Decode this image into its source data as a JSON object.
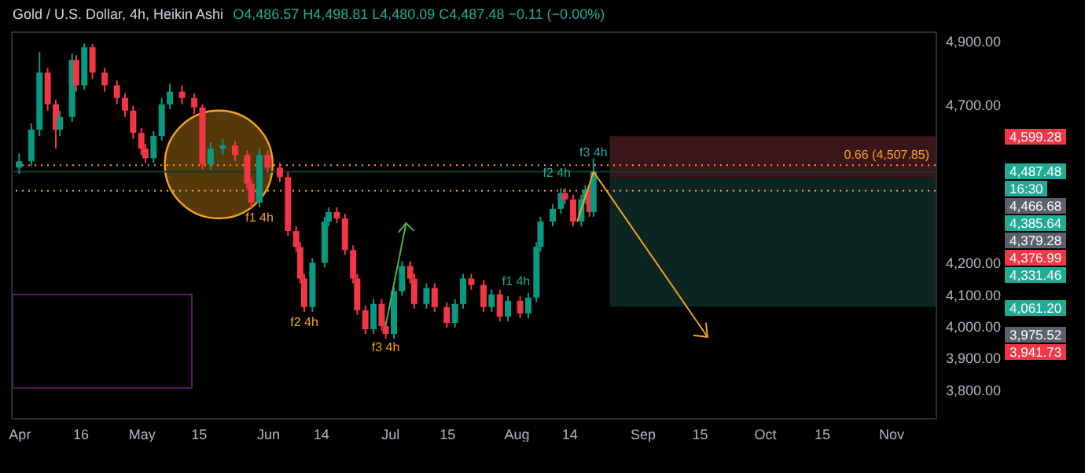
{
  "chart_data": {
    "type": "candlestick",
    "title": "Gold / U.S. Dollar, 4h, Heikin Ashi",
    "subtitle": "O4,486.57 H4,498.81 L4,480.09 C4,487.48 −0.11 (−0.00%)",
    "x": [
      "--04-01",
      "--04-04",
      "--04-06",
      "--04-08",
      "--04-10",
      "--04-11",
      "--04-14",
      "--04-15",
      "--04-17",
      "--04-19",
      "--04-22",
      "--04-25",
      "--04-27",
      "--04-29",
      "--05-01",
      "--05-02",
      "--05-04",
      "--05-06",
      "--05-08",
      "--05-11",
      "--05-14",
      "--05-16",
      "--05-18",
      "--05-21",
      "--05-24",
      "--05-27",
      "--05-28",
      "--05-30",
      "--06-01",
      "--06-04",
      "--06-06",
      "--06-08",
      "--06-09",
      "--06-10",
      "--06-12",
      "--06-15",
      "--06-16",
      "--06-18",
      "--06-20",
      "--06-22",
      "--06-23",
      "--06-25",
      "--06-27",
      "--06-29",
      "--06-30",
      "--07-02",
      "--07-04",
      "--07-06",
      "--07-07",
      "--07-10",
      "--07-12",
      "--07-15",
      "--07-17",
      "--07-19",
      "--07-21",
      "--07-24",
      "--07-26",
      "--07-28",
      "--07-30",
      "--08-02",
      "--08-04",
      "--08-06",
      "--08-07",
      "--08-10",
      "--08-12",
      "--08-13",
      "--08-15",
      "--08-17",
      "--08-18",
      "--08-19",
      "--08-20"
    ],
    "ohlc": [
      [
        4500,
        4545,
        4480,
        4520
      ],
      [
        4520,
        4640,
        4505,
        4620
      ],
      [
        4620,
        4865,
        4600,
        4800
      ],
      [
        4800,
        4815,
        4680,
        4700
      ],
      [
        4700,
        4715,
        4560,
        4620
      ],
      [
        4620,
        4680,
        4600,
        4660
      ],
      [
        4660,
        4860,
        4645,
        4840
      ],
      [
        4840,
        4855,
        4740,
        4760
      ],
      [
        4760,
        4892,
        4745,
        4880
      ],
      [
        4880,
        4890,
        4780,
        4800
      ],
      [
        4800,
        4815,
        4740,
        4760
      ],
      [
        4760,
        4775,
        4700,
        4720
      ],
      [
        4720,
        4735,
        4660,
        4680
      ],
      [
        4680,
        4695,
        4590,
        4610
      ],
      [
        4610,
        4625,
        4540,
        4560
      ],
      [
        4560,
        4575,
        4515,
        4530
      ],
      [
        4530,
        4615,
        4515,
        4600
      ],
      [
        4600,
        4720,
        4585,
        4700
      ],
      [
        4700,
        4765,
        4685,
        4740
      ],
      [
        4740,
        4760,
        4700,
        4720
      ],
      [
        4720,
        4735,
        4670,
        4690
      ],
      [
        4690,
        4700,
        4495,
        4510
      ],
      [
        4510,
        4580,
        4495,
        4560
      ],
      [
        4560,
        4590,
        4540,
        4570
      ],
      [
        4570,
        4585,
        4520,
        4540
      ],
      [
        4540,
        4555,
        4430,
        4450
      ],
      [
        4450,
        4465,
        4370,
        4390
      ],
      [
        4390,
        4560,
        4375,
        4540
      ],
      [
        4540,
        4555,
        4485,
        4500
      ],
      [
        4500,
        4515,
        4455,
        4470
      ],
      [
        4470,
        4485,
        4285,
        4300
      ],
      [
        4300,
        4315,
        4235,
        4250
      ],
      [
        4250,
        4265,
        4135,
        4150
      ],
      [
        4150,
        4165,
        4045,
        4060
      ],
      [
        4060,
        4215,
        4045,
        4200
      ],
      [
        4200,
        4345,
        4185,
        4330
      ],
      [
        4330,
        4375,
        4315,
        4360
      ],
      [
        4360,
        4375,
        4325,
        4340
      ],
      [
        4340,
        4355,
        4225,
        4240
      ],
      [
        4240,
        4255,
        4135,
        4150
      ],
      [
        4150,
        4165,
        4035,
        4050
      ],
      [
        4050,
        4065,
        3975,
        3990
      ],
      [
        3990,
        4085,
        3975,
        4070
      ],
      [
        4070,
        4085,
        3985,
        4000
      ],
      [
        4000,
        4015,
        3960,
        3975
      ],
      [
        3975,
        4125,
        3960,
        4110
      ],
      [
        4110,
        4205,
        4095,
        4190
      ],
      [
        4190,
        4205,
        4135,
        4150
      ],
      [
        4150,
        4165,
        4055,
        4070
      ],
      [
        4070,
        4135,
        4055,
        4120
      ],
      [
        4120,
        4135,
        4045,
        4060
      ],
      [
        4060,
        4075,
        3995,
        4010
      ],
      [
        4010,
        4085,
        3995,
        4070
      ],
      [
        4070,
        4165,
        4055,
        4150
      ],
      [
        4150,
        4165,
        4115,
        4130
      ],
      [
        4130,
        4145,
        4045,
        4060
      ],
      [
        4060,
        4115,
        4045,
        4100
      ],
      [
        4100,
        4115,
        4015,
        4030
      ],
      [
        4030,
        4095,
        4015,
        4080
      ],
      [
        4080,
        4095,
        4025,
        4040
      ],
      [
        4040,
        4105,
        4025,
        4090
      ],
      [
        4090,
        4265,
        4075,
        4250
      ],
      [
        4250,
        4345,
        4235,
        4330
      ],
      [
        4330,
        4385,
        4315,
        4370
      ],
      [
        4370,
        4435,
        4355,
        4420
      ],
      [
        4420,
        4435,
        4385,
        4400
      ],
      [
        4400,
        4415,
        4315,
        4330
      ],
      [
        4330,
        4415,
        4315,
        4400
      ],
      [
        4400,
        4445,
        4385,
        4430
      ],
      [
        4430,
        4445,
        4345,
        4360
      ],
      [
        4360,
        4530,
        4345,
        4487.48
      ]
    ],
    "xlim": [
      "--03-30",
      "--11-12"
    ],
    "xticks": [
      {
        "value": "--04-01",
        "label": "Apr"
      },
      {
        "value": "--04-16",
        "label": "16"
      },
      {
        "value": "--05-01",
        "label": "May"
      },
      {
        "value": "--05-15",
        "label": "15"
      },
      {
        "value": "--06-01",
        "label": "Jun"
      },
      {
        "value": "--06-14",
        "label": "14"
      },
      {
        "value": "--07-01",
        "label": "Jul"
      },
      {
        "value": "--07-15",
        "label": "15"
      },
      {
        "value": "--08-01",
        "label": "Aug"
      },
      {
        "value": "--08-14",
        "label": "14"
      },
      {
        "value": "--09-01",
        "label": "Sep"
      },
      {
        "value": "--09-15",
        "label": "15"
      },
      {
        "value": "--10-01",
        "label": "Oct"
      },
      {
        "value": "--10-15",
        "label": "15"
      },
      {
        "value": "--11-01",
        "label": "Nov"
      }
    ],
    "ylim": [
      3710,
      4930
    ],
    "yticks": [
      {
        "value": 3800,
        "label": "3,800.00"
      },
      {
        "value": 3900,
        "label": "3,900.00"
      },
      {
        "value": 4000,
        "label": "4,000.00"
      },
      {
        "value": 4100,
        "label": "4,100.00"
      },
      {
        "value": 4200,
        "label": "4,200.00"
      },
      {
        "value": 4700,
        "label": "4,700.00"
      },
      {
        "value": 4900,
        "label": "4,900.00"
      }
    ],
    "ref_lines": [
      {
        "axis": "y",
        "value": 4507.85,
        "label": "0.66 (4,507.85)",
        "color": "#f7a21b",
        "line_style": "dotted"
      },
      {
        "axis": "y",
        "value": 4427,
        "color": "#f7a21b",
        "line_style": "dotted"
      },
      {
        "axis": "y",
        "value": 4487.48,
        "color": "#0e3b33",
        "line_style": "solid"
      }
    ],
    "bands": [
      {
        "axis": "y",
        "from": 4466.68,
        "to": 4599.28,
        "color": "#3a1519"
      },
      {
        "axis": "y",
        "from": 4061.2,
        "to": 4466.68,
        "color": "#0b2622"
      }
    ],
    "annotations": [
      "f1 4h",
      "f2 4h",
      "f3 4h",
      "f1 4h",
      "f2 4h",
      "f3 4h",
      "4,599.28",
      "4,487.48",
      "16:30",
      "4,466.68",
      "4,385.64",
      "4,379.28",
      "4,376.99",
      "4,331.46",
      "4,061.20",
      "3,975.52",
      "3,941.73"
    ]
  }
}
